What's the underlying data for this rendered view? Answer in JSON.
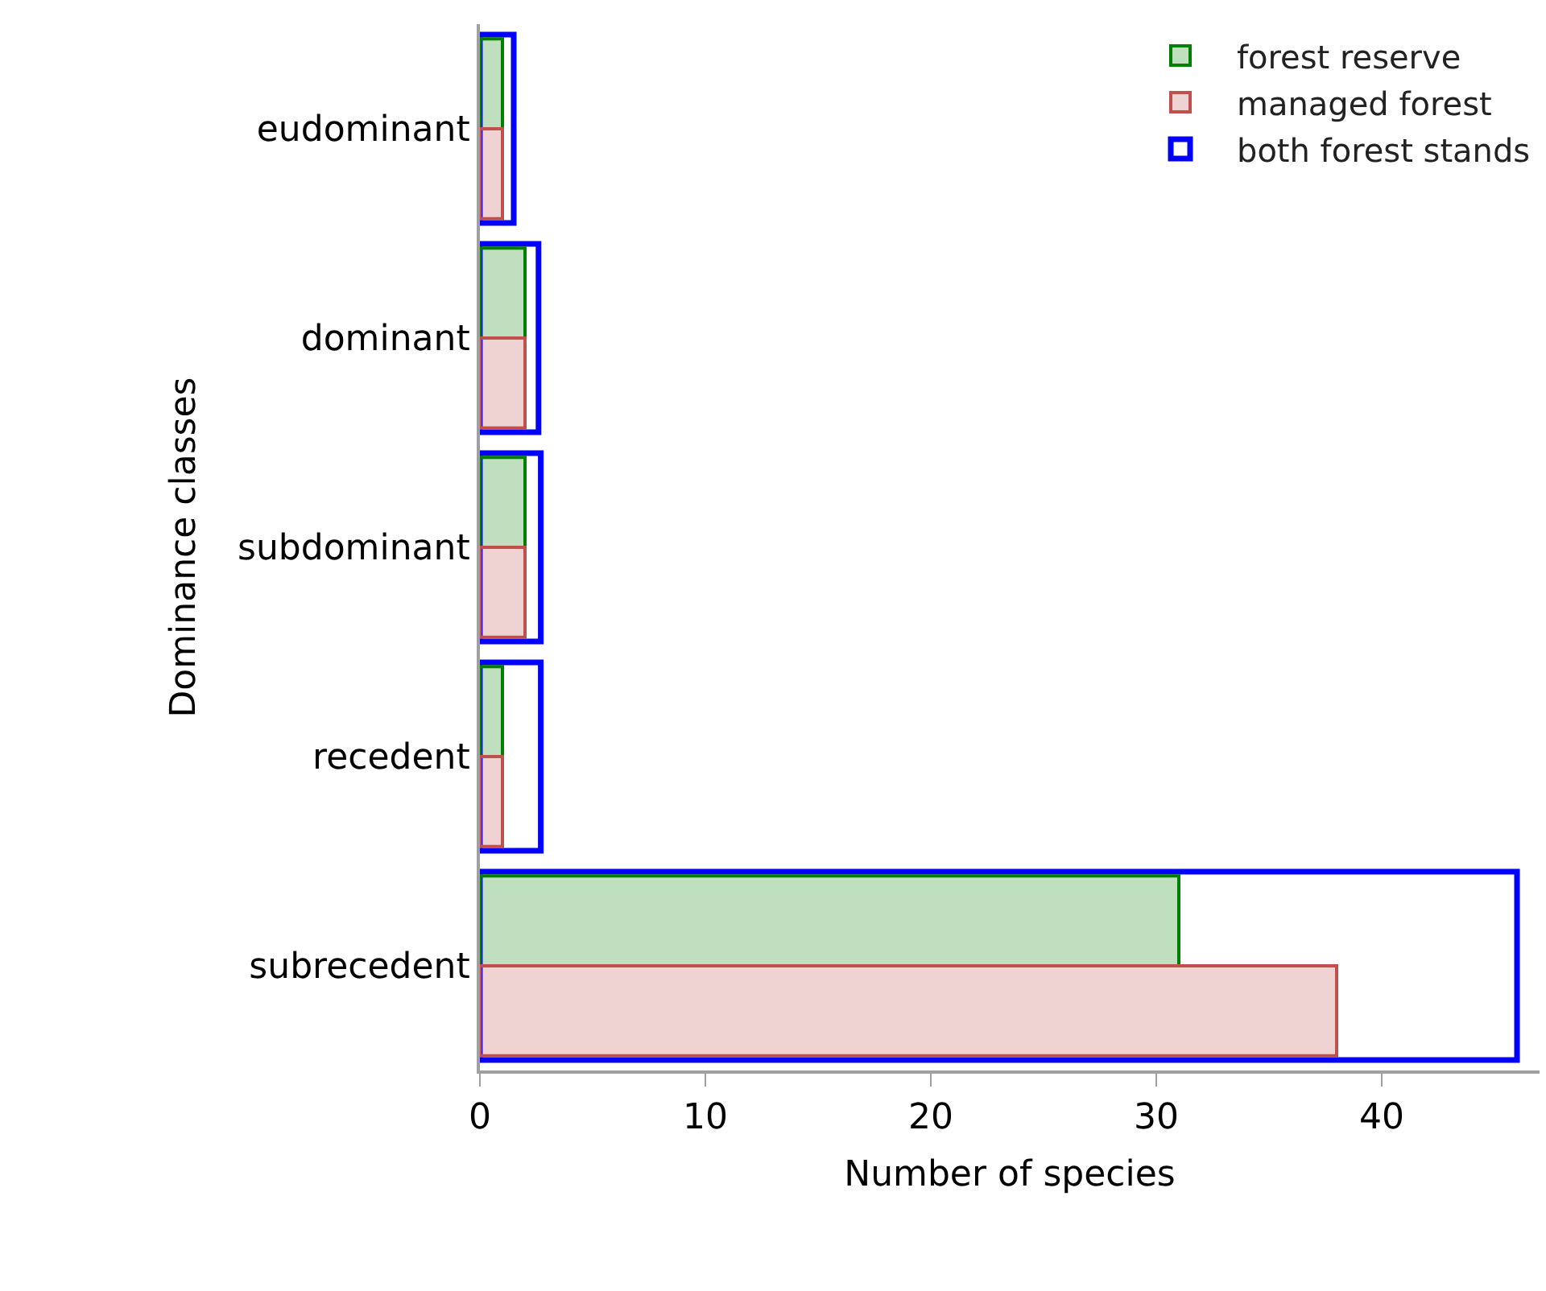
{
  "chart_data": {
    "type": "bar",
    "orientation": "horizontal",
    "xlabel": "Number of species",
    "ylabel": "Dominance classes",
    "categories": [
      "eudominant",
      "dominant",
      "subdominant",
      "recedent",
      "subrecedent"
    ],
    "series": [
      {
        "name": "forest reserve",
        "color": "#008000",
        "values": [
          1,
          2,
          2,
          1,
          31
        ]
      },
      {
        "name": "managed forest",
        "color": "#c0504d",
        "values": [
          1,
          2,
          2,
          1,
          38
        ]
      },
      {
        "name": "both forest stands",
        "color": "#0000ff",
        "values": [
          1.5,
          2.6,
          2.7,
          2.7,
          46
        ]
      }
    ],
    "xlim": [
      0,
      47
    ],
    "xticks": [
      0,
      10,
      20,
      30,
      40
    ],
    "legend": "top right"
  }
}
